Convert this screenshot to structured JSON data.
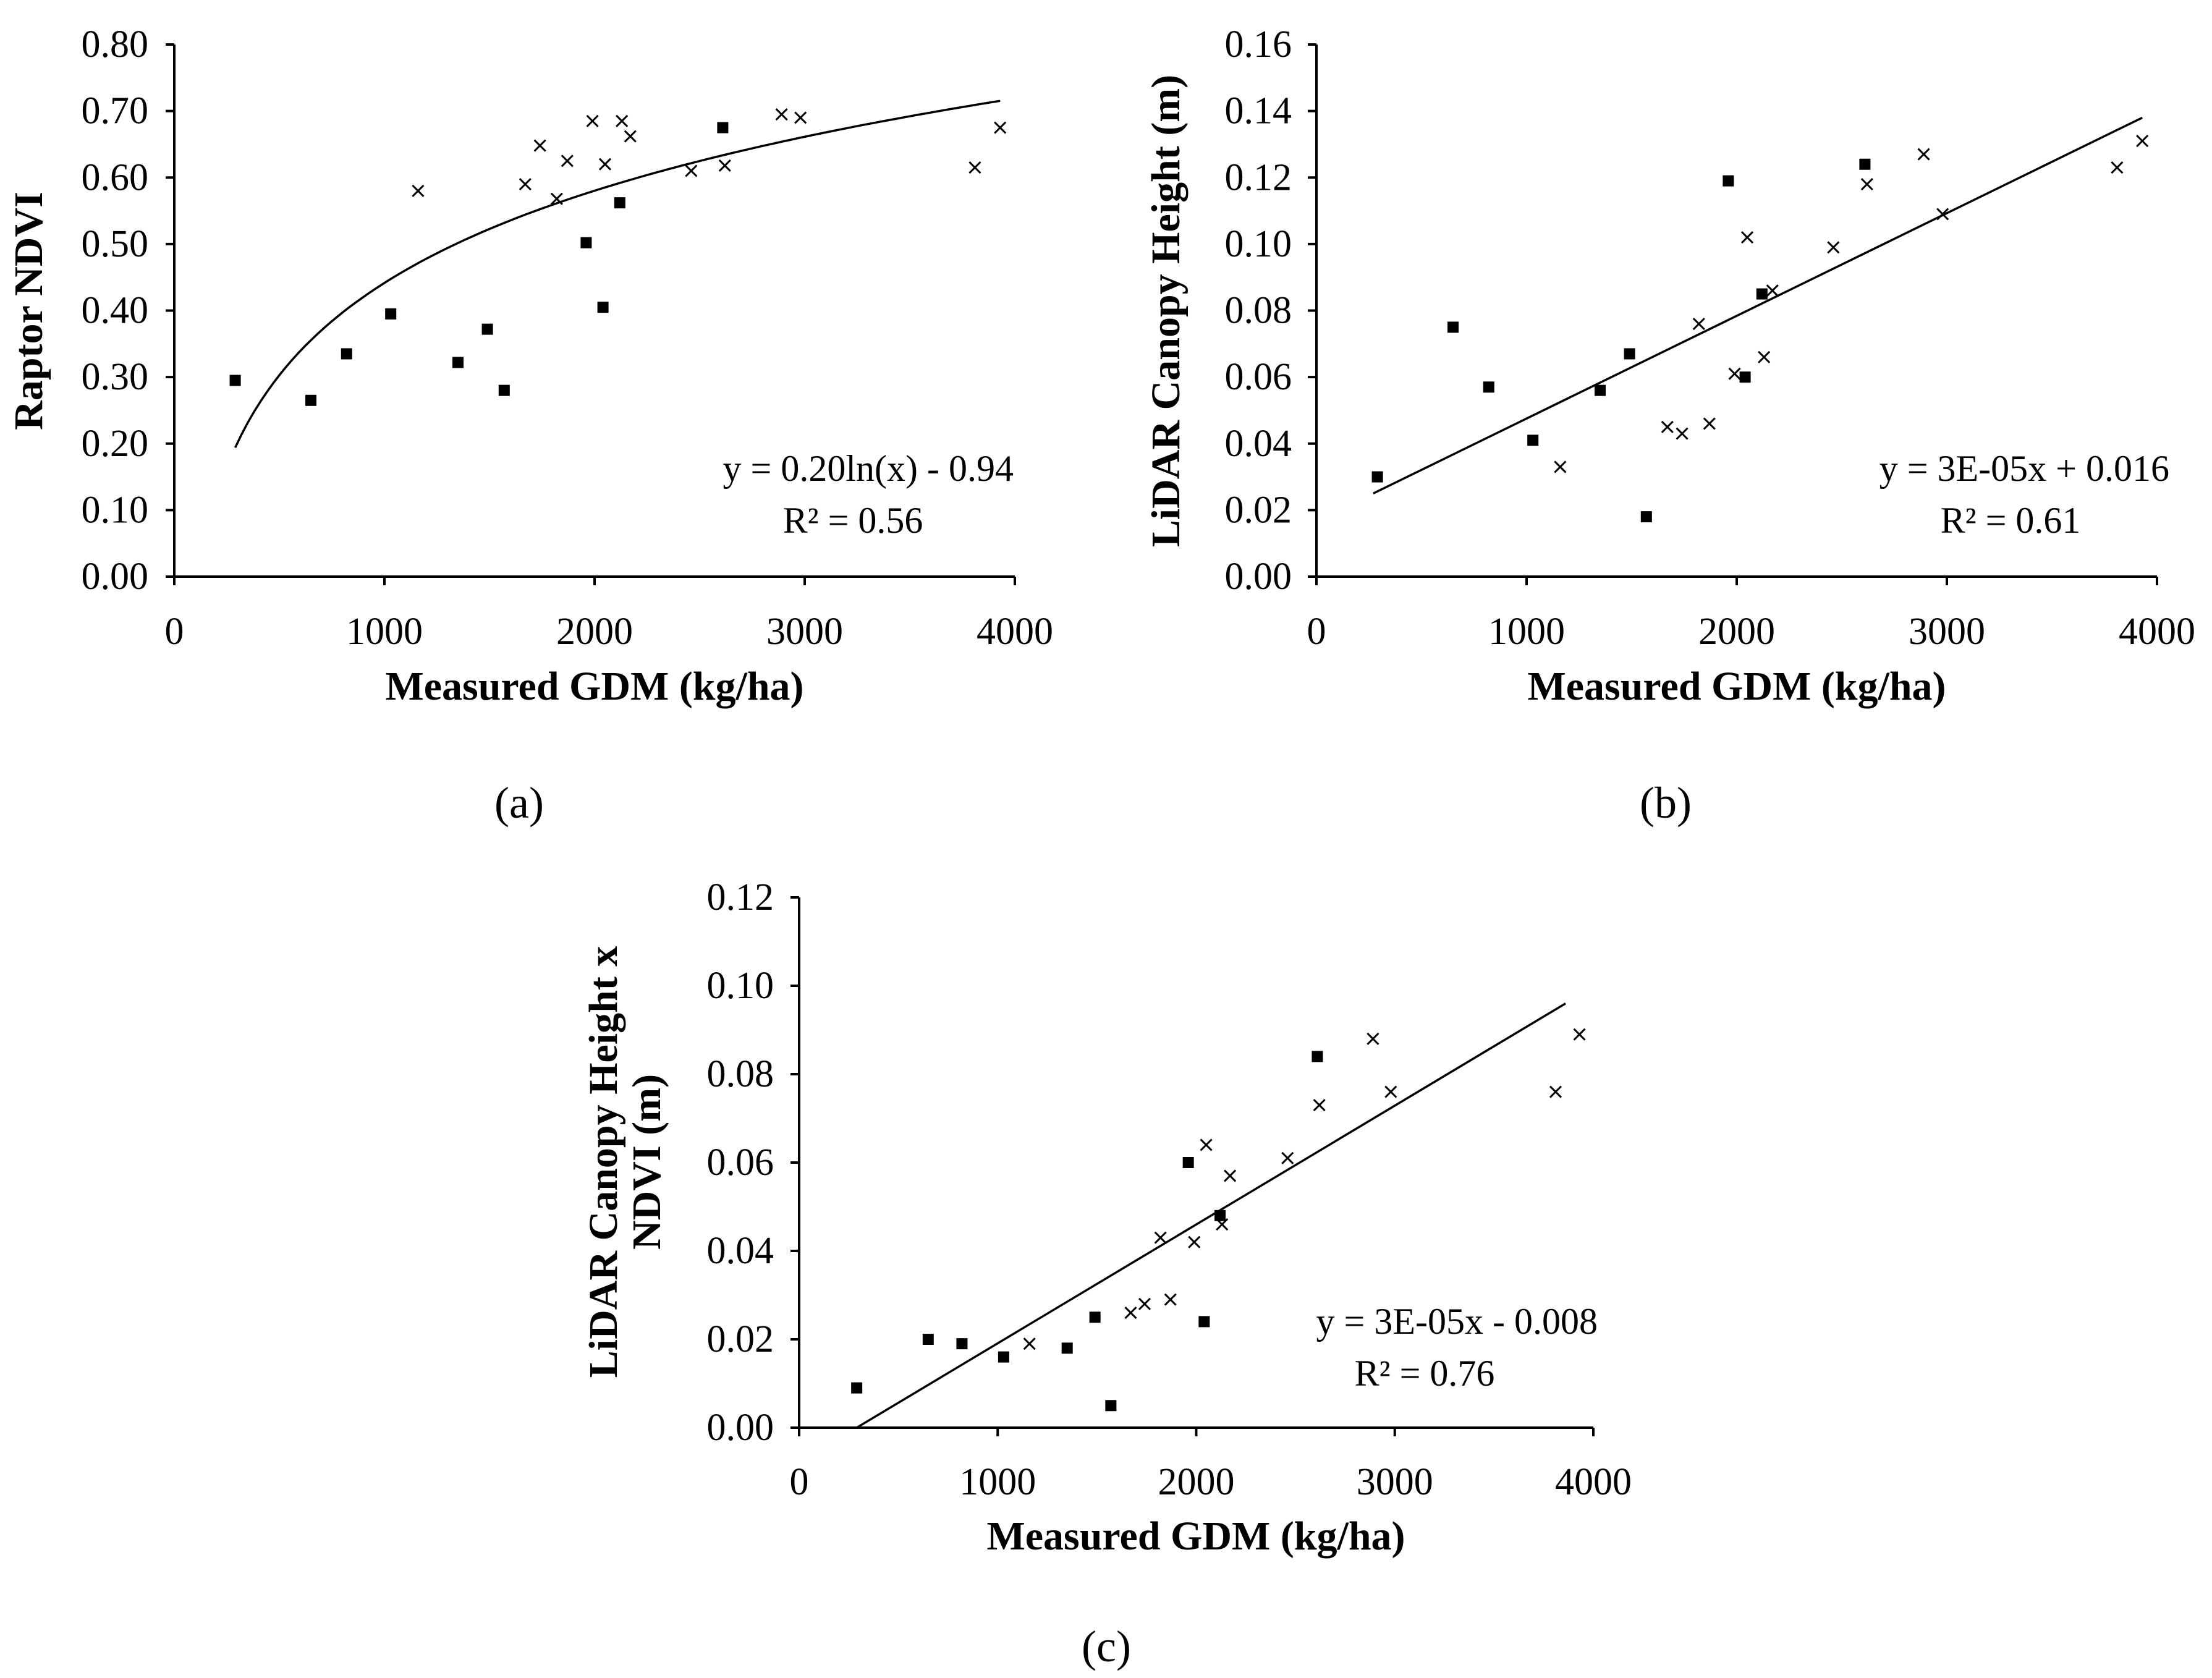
{
  "chart_data": [
    {
      "type": "scatter",
      "panel_label": "(a)",
      "xlabel": "Measured GDM (kg/ha)",
      "ylabel": "Raptor NDVI",
      "xlim": [
        0,
        4000
      ],
      "ylim": [
        0,
        0.8
      ],
      "x_ticks": [
        "0",
        "1000",
        "2000",
        "3000",
        "4000"
      ],
      "y_ticks": [
        "0.00",
        "0.10",
        "0.20",
        "0.30",
        "0.40",
        "0.50",
        "0.60",
        "0.70",
        "0.80"
      ],
      "equation": "y = 0.20ln(x) - 0.94",
      "r2": "R² = 0.56",
      "fit": {
        "kind": "log",
        "a": 0.2,
        "b": -0.94,
        "x_range": [
          290,
          3930
        ]
      },
      "series": [
        {
          "name": "square",
          "marker": "square",
          "points": [
            [
              290,
              0.295
            ],
            [
              650,
              0.265
            ],
            [
              820,
              0.335
            ],
            [
              1030,
              0.395
            ],
            [
              1350,
              0.322
            ],
            [
              1490,
              0.372
            ],
            [
              1570,
              0.28
            ],
            [
              1960,
              0.502
            ],
            [
              2040,
              0.405
            ],
            [
              2120,
              0.562
            ],
            [
              2610,
              0.675
            ]
          ]
        },
        {
          "name": "cross",
          "marker": "cross",
          "points": [
            [
              1160,
              0.58
            ],
            [
              1670,
              0.59
            ],
            [
              1740,
              0.648
            ],
            [
              1820,
              0.568
            ],
            [
              1870,
              0.625
            ],
            [
              1990,
              0.685
            ],
            [
              2050,
              0.62
            ],
            [
              2130,
              0.685
            ],
            [
              2170,
              0.662
            ],
            [
              2460,
              0.61
            ],
            [
              2620,
              0.618
            ],
            [
              2890,
              0.695
            ],
            [
              2980,
              0.69
            ],
            [
              3810,
              0.615
            ],
            [
              3930,
              0.675
            ]
          ]
        }
      ]
    },
    {
      "type": "scatter",
      "panel_label": "(b)",
      "xlabel": "Measured GDM (kg/ha)",
      "ylabel": "LiDAR Canopy Height (m)",
      "xlim": [
        0,
        4000
      ],
      "ylim": [
        0,
        0.16
      ],
      "x_ticks": [
        "0",
        "1000",
        "2000",
        "3000",
        "4000"
      ],
      "y_ticks": [
        "0.00",
        "0.02",
        "0.04",
        "0.06",
        "0.08",
        "0.10",
        "0.12",
        "0.14",
        "0.16"
      ],
      "equation": "y = 3E-05x + 0.016",
      "r2": "R² = 0.61",
      "fit": {
        "kind": "linear",
        "slope": 3e-05,
        "intercept": 0.016,
        "x_range": [
          270,
          3930
        ],
        "y_range": [
          0.025,
          0.138
        ]
      },
      "series": [
        {
          "name": "square",
          "marker": "square",
          "points": [
            [
              290,
              0.03
            ],
            [
              650,
              0.075
            ],
            [
              820,
              0.057
            ],
            [
              1030,
              0.041
            ],
            [
              1350,
              0.056
            ],
            [
              1490,
              0.067
            ],
            [
              1570,
              0.018
            ],
            [
              1960,
              0.119
            ],
            [
              2040,
              0.06
            ],
            [
              2120,
              0.085
            ],
            [
              2610,
              0.124
            ]
          ]
        },
        {
          "name": "cross",
          "marker": "cross",
          "points": [
            [
              1160,
              0.033
            ],
            [
              1670,
              0.045
            ],
            [
              1740,
              0.043
            ],
            [
              1820,
              0.076
            ],
            [
              1870,
              0.046
            ],
            [
              1990,
              0.061
            ],
            [
              2050,
              0.102
            ],
            [
              2130,
              0.066
            ],
            [
              2170,
              0.086
            ],
            [
              2460,
              0.099
            ],
            [
              2620,
              0.118
            ],
            [
              2890,
              0.127
            ],
            [
              2980,
              0.109
            ],
            [
              3810,
              0.123
            ],
            [
              3930,
              0.131
            ]
          ]
        }
      ]
    },
    {
      "type": "scatter",
      "panel_label": "(c)",
      "xlabel": "Measured GDM (kg/ha)",
      "ylabel_lines": [
        "LiDAR Canopy Height x",
        "NDVI (m)"
      ],
      "xlim": [
        0,
        4000
      ],
      "ylim": [
        0,
        0.12
      ],
      "x_ticks": [
        "0",
        "1000",
        "2000",
        "3000",
        "4000"
      ],
      "y_ticks": [
        "0.00",
        "0.02",
        "0.04",
        "0.06",
        "0.08",
        "0.10",
        "0.12"
      ],
      "equation": "y = 3E-05x - 0.008",
      "r2": "R² = 0.76",
      "fit": {
        "kind": "linear",
        "slope": 3e-05,
        "intercept": -0.008,
        "x_range": [
          290,
          3860
        ],
        "y_range": [
          0.0,
          0.096
        ]
      },
      "series": [
        {
          "name": "square",
          "marker": "square",
          "points": [
            [
              290,
              0.009
            ],
            [
              650,
              0.02
            ],
            [
              820,
              0.019
            ],
            [
              1030,
              0.016
            ],
            [
              1350,
              0.018
            ],
            [
              1490,
              0.025
            ],
            [
              1570,
              0.005
            ],
            [
              1960,
              0.06
            ],
            [
              2040,
              0.024
            ],
            [
              2120,
              0.048
            ],
            [
              2610,
              0.084
            ]
          ]
        },
        {
          "name": "cross",
          "marker": "cross",
          "points": [
            [
              1160,
              0.019
            ],
            [
              1670,
              0.026
            ],
            [
              1740,
              0.028
            ],
            [
              1820,
              0.043
            ],
            [
              1870,
              0.029
            ],
            [
              1990,
              0.042
            ],
            [
              2050,
              0.064
            ],
            [
              2130,
              0.046
            ],
            [
              2170,
              0.057
            ],
            [
              2460,
              0.061
            ],
            [
              2620,
              0.073
            ],
            [
              2890,
              0.088
            ],
            [
              2980,
              0.076
            ],
            [
              3810,
              0.076
            ],
            [
              3930,
              0.089
            ]
          ]
        }
      ]
    }
  ]
}
